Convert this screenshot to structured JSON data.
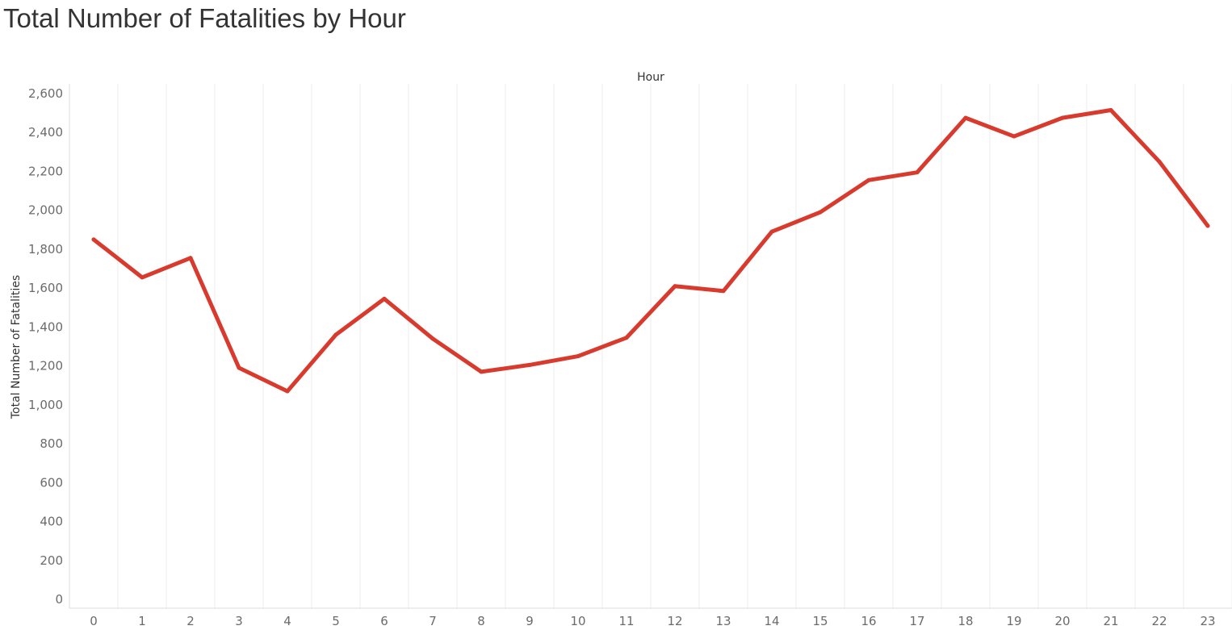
{
  "chart_data": {
    "type": "line",
    "title": "Total Number of Fatalities by Hour",
    "xlabel": "Hour",
    "ylabel": "Total Number of Fatalities",
    "x": [
      0,
      1,
      2,
      3,
      4,
      5,
      6,
      7,
      8,
      9,
      10,
      11,
      12,
      13,
      14,
      15,
      16,
      17,
      18,
      19,
      20,
      21,
      22,
      23
    ],
    "series": [
      {
        "values": [
          1850,
          1655,
          1755,
          1190,
          1070,
          1360,
          1545,
          1340,
          1170,
          1205,
          1250,
          1345,
          1610,
          1585,
          1890,
          1990,
          2155,
          2195,
          2475,
          2380,
          2475,
          2515,
          2250,
          1920
        ]
      }
    ],
    "ylim": [
      0,
      2650
    ],
    "yticks": [
      0,
      200,
      400,
      600,
      800,
      1000,
      1200,
      1400,
      1600,
      1800,
      2000,
      2200,
      2400,
      2600
    ],
    "ytick_labels": [
      "0",
      "200",
      "400",
      "600",
      "800",
      "1,000",
      "1,200",
      "1,400",
      "1,600",
      "1,800",
      "2,000",
      "2,200",
      "2,400",
      "2,600"
    ],
    "grid": "vertical",
    "line_color": "#d83b2e"
  }
}
